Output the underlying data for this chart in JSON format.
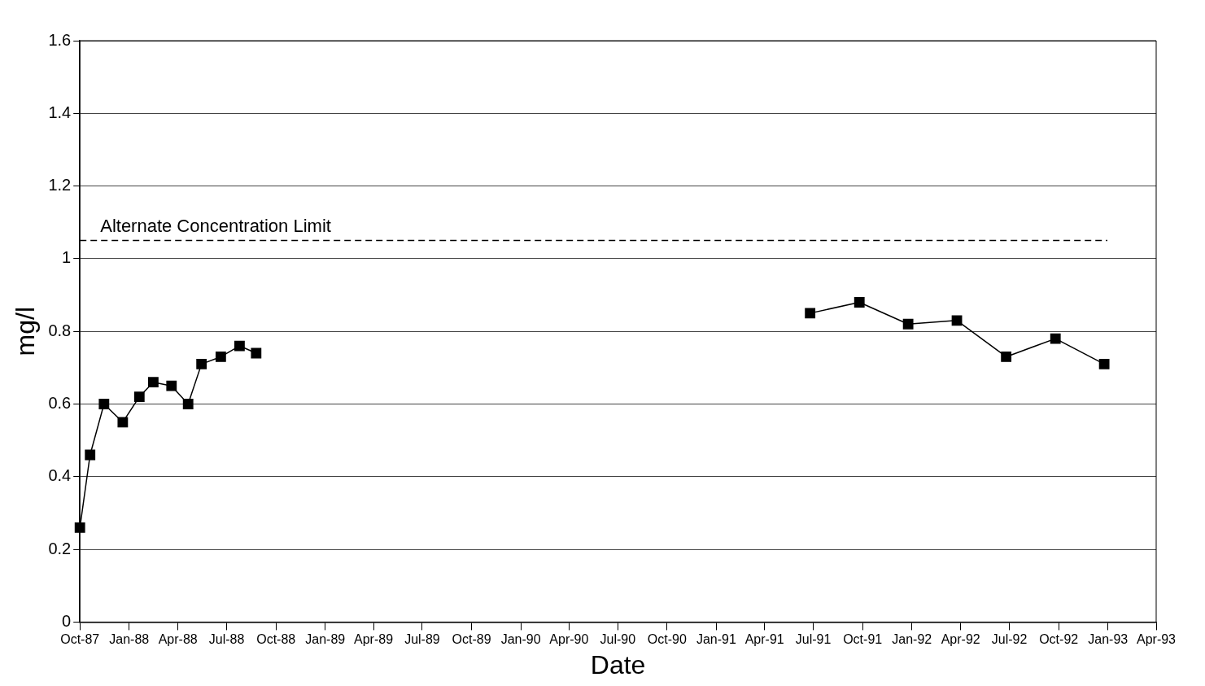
{
  "chart_data": {
    "type": "line",
    "xlabel": "Date",
    "ylabel": "mg/l",
    "series": [
      {
        "color": "#000000",
        "x": [
          "1987-10-01",
          "1987-10-20",
          "1987-11-15",
          "1987-12-20",
          "1988-01-20",
          "1988-02-15",
          "1988-03-20",
          "1988-04-20",
          "1988-05-15",
          "1988-06-20",
          "1988-07-25",
          "1988-08-25"
        ],
        "values": [
          0.26,
          0.46,
          0.6,
          0.55,
          0.62,
          0.66,
          0.65,
          0.6,
          0.71,
          0.73,
          0.76,
          0.74
        ]
      },
      {
        "color": "#000000",
        "x": [
          "1991-06-25",
          "1991-09-25",
          "1991-12-25",
          "1992-03-25",
          "1992-06-25",
          "1992-09-25",
          "1992-12-25"
        ],
        "values": [
          0.85,
          0.88,
          0.82,
          0.83,
          0.73,
          0.78,
          0.71
        ]
      }
    ],
    "xlim": [
      "1987-10",
      "1993-04"
    ],
    "xticks": [
      {
        "value": "1987-10",
        "label": "Oct-87"
      },
      {
        "value": "1988-01",
        "label": "Jan-88"
      },
      {
        "value": "1988-04",
        "label": "Apr-88"
      },
      {
        "value": "1988-07",
        "label": "Jul-88"
      },
      {
        "value": "1988-10",
        "label": "Oct-88"
      },
      {
        "value": "1989-01",
        "label": "Jan-89"
      },
      {
        "value": "1989-04",
        "label": "Apr-89"
      },
      {
        "value": "1989-07",
        "label": "Jul-89"
      },
      {
        "value": "1989-10",
        "label": "Oct-89"
      },
      {
        "value": "1990-01",
        "label": "Jan-90"
      },
      {
        "value": "1990-04",
        "label": "Apr-90"
      },
      {
        "value": "1990-07",
        "label": "Jul-90"
      },
      {
        "value": "1990-10",
        "label": "Oct-90"
      },
      {
        "value": "1991-01",
        "label": "Jan-91"
      },
      {
        "value": "1991-04",
        "label": "Apr-91"
      },
      {
        "value": "1991-07",
        "label": "Jul-91"
      },
      {
        "value": "1991-10",
        "label": "Oct-91"
      },
      {
        "value": "1992-01",
        "label": "Jan-92"
      },
      {
        "value": "1992-04",
        "label": "Apr-92"
      },
      {
        "value": "1992-07",
        "label": "Jul-92"
      },
      {
        "value": "1992-10",
        "label": "Oct-92"
      },
      {
        "value": "1993-01",
        "label": "Jan-93"
      },
      {
        "value": "1993-04",
        "label": "Apr-93"
      }
    ],
    "ylim": [
      0,
      1.6
    ],
    "yticks": [
      0,
      0.2,
      0.4,
      0.6,
      0.8,
      1,
      1.2,
      1.4,
      1.6
    ],
    "ref_lines": [
      {
        "axis": "y",
        "value": 1.05,
        "label": "Alternate Concentration Limit",
        "line_style": "dashed"
      }
    ],
    "grid": "y",
    "legend": false,
    "marker": "square",
    "line_style": "solid"
  }
}
